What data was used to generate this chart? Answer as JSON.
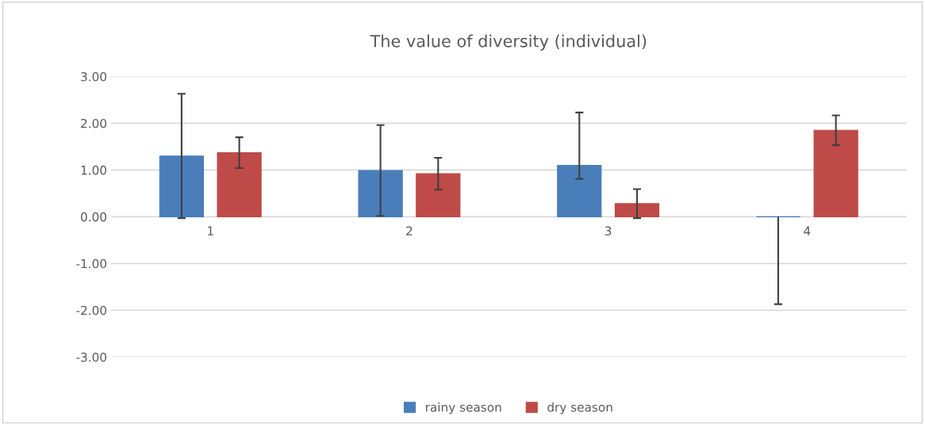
{
  "chart_data": {
    "type": "bar",
    "title": "The value of diversity (individual)",
    "categories": [
      "1",
      "2",
      "3",
      "4"
    ],
    "series": [
      {
        "name": "rainy season",
        "color": "#4a7ebb",
        "values": [
          1.3,
          0.99,
          1.1,
          0
        ],
        "errors": [
          1.33,
          0.97,
          [
            0.81,
            2.23
          ],
          [
            -1.87,
            0
          ]
        ]
      },
      {
        "name": "dry season",
        "color": "#be4b48",
        "values": [
          1.37,
          0.92,
          0.28,
          1.85
        ],
        "errors": [
          0.33,
          0.34,
          0.31,
          0.32
        ]
      }
    ],
    "ylim": [
      -3,
      3
    ],
    "yticks": [
      {
        "value": -3,
        "label": "-3.00"
      },
      {
        "value": -2,
        "label": "-2.00"
      },
      {
        "value": -1,
        "label": "-1.00"
      },
      {
        "value": 0,
        "label": "0.00"
      },
      {
        "value": 1,
        "label": "1.00"
      },
      {
        "value": 2,
        "label": "2.00"
      },
      {
        "value": 3,
        "label": "3.00"
      }
    ],
    "grid": "y",
    "legend": "bottom"
  }
}
